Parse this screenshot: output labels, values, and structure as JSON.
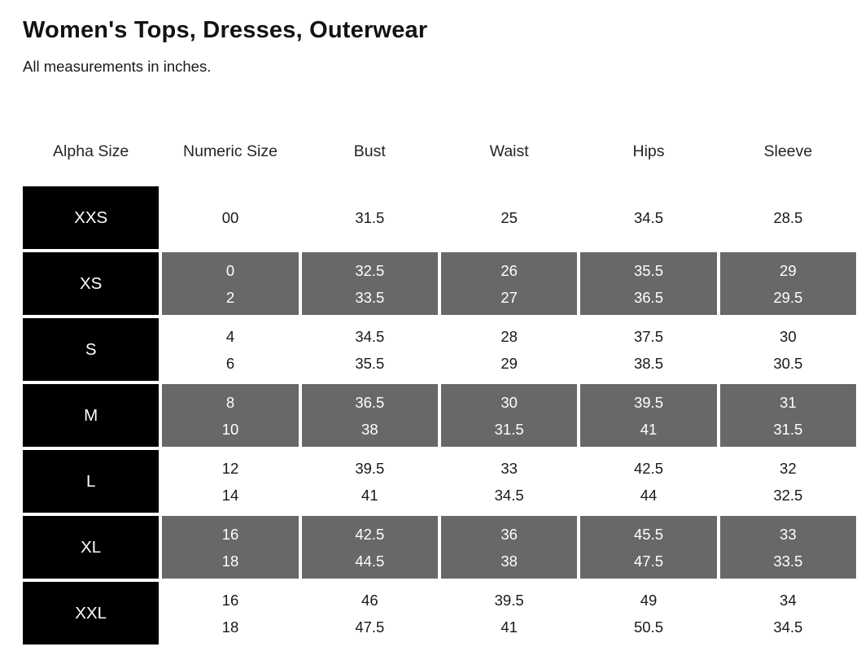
{
  "page": {
    "title": "Women's Tops, Dresses, Outerwear",
    "subtitle": "All measurements in inches."
  },
  "colors": {
    "alpha_cell_bg": "#000000",
    "alpha_cell_text": "#ffffff",
    "shaded_cell_bg": "#686868",
    "shaded_cell_text": "#ffffff",
    "plain_cell_text": "#17191b",
    "header_text": "#21262b",
    "page_bg": "#ffffff"
  },
  "table": {
    "columns": [
      "Alpha Size",
      "Numeric Size",
      "Bust",
      "Waist",
      "Hips",
      "Sleeve"
    ],
    "measurement_keys": [
      "numeric",
      "bust",
      "waist",
      "hips",
      "sleeve"
    ],
    "rows": [
      {
        "alpha": "XXS",
        "shaded": false,
        "numeric": [
          "00"
        ],
        "bust": [
          "31.5"
        ],
        "waist": [
          "25"
        ],
        "hips": [
          "34.5"
        ],
        "sleeve": [
          "28.5"
        ]
      },
      {
        "alpha": "XS",
        "shaded": true,
        "numeric": [
          "0",
          "2"
        ],
        "bust": [
          "32.5",
          "33.5"
        ],
        "waist": [
          "26",
          "27"
        ],
        "hips": [
          "35.5",
          "36.5"
        ],
        "sleeve": [
          "29",
          "29.5"
        ]
      },
      {
        "alpha": "S",
        "shaded": false,
        "numeric": [
          "4",
          "6"
        ],
        "bust": [
          "34.5",
          "35.5"
        ],
        "waist": [
          "28",
          "29"
        ],
        "hips": [
          "37.5",
          "38.5"
        ],
        "sleeve": [
          "30",
          "30.5"
        ]
      },
      {
        "alpha": "M",
        "shaded": true,
        "numeric": [
          "8",
          "10"
        ],
        "bust": [
          "36.5",
          "38"
        ],
        "waist": [
          "30",
          "31.5"
        ],
        "hips": [
          "39.5",
          "41"
        ],
        "sleeve": [
          "31",
          "31.5"
        ]
      },
      {
        "alpha": "L",
        "shaded": false,
        "numeric": [
          "12",
          "14"
        ],
        "bust": [
          "39.5",
          "41"
        ],
        "waist": [
          "33",
          "34.5"
        ],
        "hips": [
          "42.5",
          "44"
        ],
        "sleeve": [
          "32",
          "32.5"
        ]
      },
      {
        "alpha": "XL",
        "shaded": true,
        "numeric": [
          "16",
          "18"
        ],
        "bust": [
          "42.5",
          "44.5"
        ],
        "waist": [
          "36",
          "38"
        ],
        "hips": [
          "45.5",
          "47.5"
        ],
        "sleeve": [
          "33",
          "33.5"
        ]
      },
      {
        "alpha": "XXL",
        "shaded": false,
        "numeric": [
          "16",
          "18"
        ],
        "bust": [
          "46",
          "47.5"
        ],
        "waist": [
          "39.5",
          "41"
        ],
        "hips": [
          "49",
          "50.5"
        ],
        "sleeve": [
          "34",
          "34.5"
        ]
      }
    ]
  }
}
